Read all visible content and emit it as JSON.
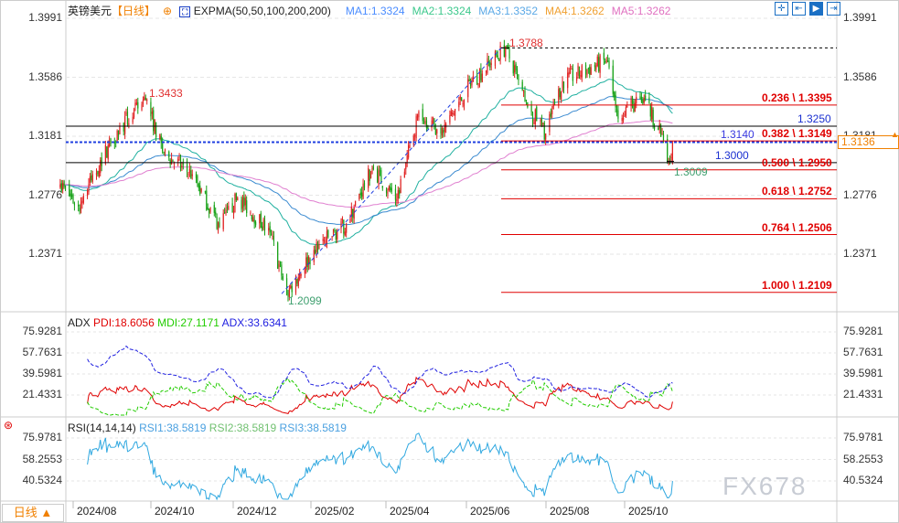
{
  "header": {
    "symbol": "英镑美元",
    "period": "【日线】",
    "indicator": "EXPMA(50,50,100,200,200)",
    "ma": [
      {
        "label": "MA1:1.3324",
        "color": "#4a8cff"
      },
      {
        "label": "MA2:1.3324",
        "color": "#3cc88c"
      },
      {
        "label": "MA3:1.3352",
        "color": "#5aa8e6"
      },
      {
        "label": "MA4:1.3262",
        "color": "#f0a030"
      },
      {
        "label": "MA5:1.3262",
        "color": "#e070c0"
      }
    ],
    "tools": [
      "crosshair-icon",
      "zoom-range-icon",
      "move-right-icon",
      "jump-end-icon"
    ]
  },
  "price_axis": {
    "ticks_left": [
      "1.3991",
      "1.3586",
      "1.3181",
      "1.2776",
      "1.2371"
    ],
    "ticks_right": [
      "1.3991",
      "1.3586",
      "1.3181",
      "1.2776",
      "1.2371"
    ],
    "current": "1.3136"
  },
  "annotations": {
    "high1": "1.3433",
    "low1": "1.2099",
    "high2": "1.3788",
    "low2": "1.3009",
    "hline1": "1.3250",
    "hline2": "1.3140",
    "hline3": "1.3000"
  },
  "fib": [
    {
      "label": "0.236 \\ 1.3395",
      "price": 1.3395
    },
    {
      "label": "0.382 \\ 1.3149",
      "price": 1.3149
    },
    {
      "label": "0.500 \\ 1.2950",
      "price": 1.295
    },
    {
      "label": "0.618 \\ 1.2752",
      "price": 1.2752
    },
    {
      "label": "0.764 \\ 1.2506",
      "price": 1.2506
    },
    {
      "label": "1.000 \\ 1.2109",
      "price": 1.2109
    }
  ],
  "adx": {
    "title": "ADX",
    "pdi": "PDI:18.6056",
    "mdi": "MDI:27.1171",
    "adx": "ADX:33.6341",
    "ticks": [
      "75.9281",
      "57.7631",
      "39.5981",
      "21.4331"
    ]
  },
  "rsi": {
    "title": "RSI(14,14,14)",
    "r1": "RSI1:38.5819",
    "r2": "RSI2:38.5819",
    "r3": "RSI3:38.5819",
    "ticks": [
      "75.9781",
      "58.2553",
      "40.5324"
    ]
  },
  "xaxis": {
    "period_button": "日线 ▲",
    "labels": [
      "2024/08",
      "2024/10",
      "2024/12",
      "2025/02",
      "2025/04",
      "2025/06",
      "2025/08",
      "2025/10"
    ]
  },
  "watermark": "FX678",
  "chart_data": {
    "type": "candlestick",
    "title": "英镑美元 日线",
    "ylim": [
      1.2,
      1.4
    ],
    "key_points": [
      [
        "2024-07-22",
        1.285
      ],
      [
        "2024-08-05",
        1.27
      ],
      [
        "2024-09-01",
        1.318
      ],
      [
        "2024-09-26",
        1.3433
      ],
      [
        "2024-10-10",
        1.306
      ],
      [
        "2024-11-01",
        1.292
      ],
      [
        "2024-11-22",
        1.256
      ],
      [
        "2024-12-06",
        1.276
      ],
      [
        "2024-12-31",
        1.252
      ],
      [
        "2025-01-13",
        1.2099
      ],
      [
        "2025-02-03",
        1.24
      ],
      [
        "2025-02-28",
        1.258
      ],
      [
        "2025-03-20",
        1.296
      ],
      [
        "2025-04-08",
        1.275
      ],
      [
        "2025-04-25",
        1.335
      ],
      [
        "2025-05-12",
        1.32
      ],
      [
        "2025-06-05",
        1.356
      ],
      [
        "2025-07-01",
        1.3788
      ],
      [
        "2025-07-16",
        1.342
      ],
      [
        "2025-08-01",
        1.32
      ],
      [
        "2025-08-14",
        1.356
      ],
      [
        "2025-09-17",
        1.37
      ],
      [
        "2025-09-25",
        1.335
      ],
      [
        "2025-10-17",
        1.343
      ],
      [
        "2025-10-31",
        1.315
      ],
      [
        "2025-11-04",
        1.3009
      ],
      [
        "2025-11-07",
        1.3136
      ]
    ],
    "colors": {
      "up": "#e02020",
      "down": "#14a014",
      "ema50": "#20b0a0",
      "ema100": "#3a8ad0",
      "ema200": "#e080d0"
    }
  }
}
